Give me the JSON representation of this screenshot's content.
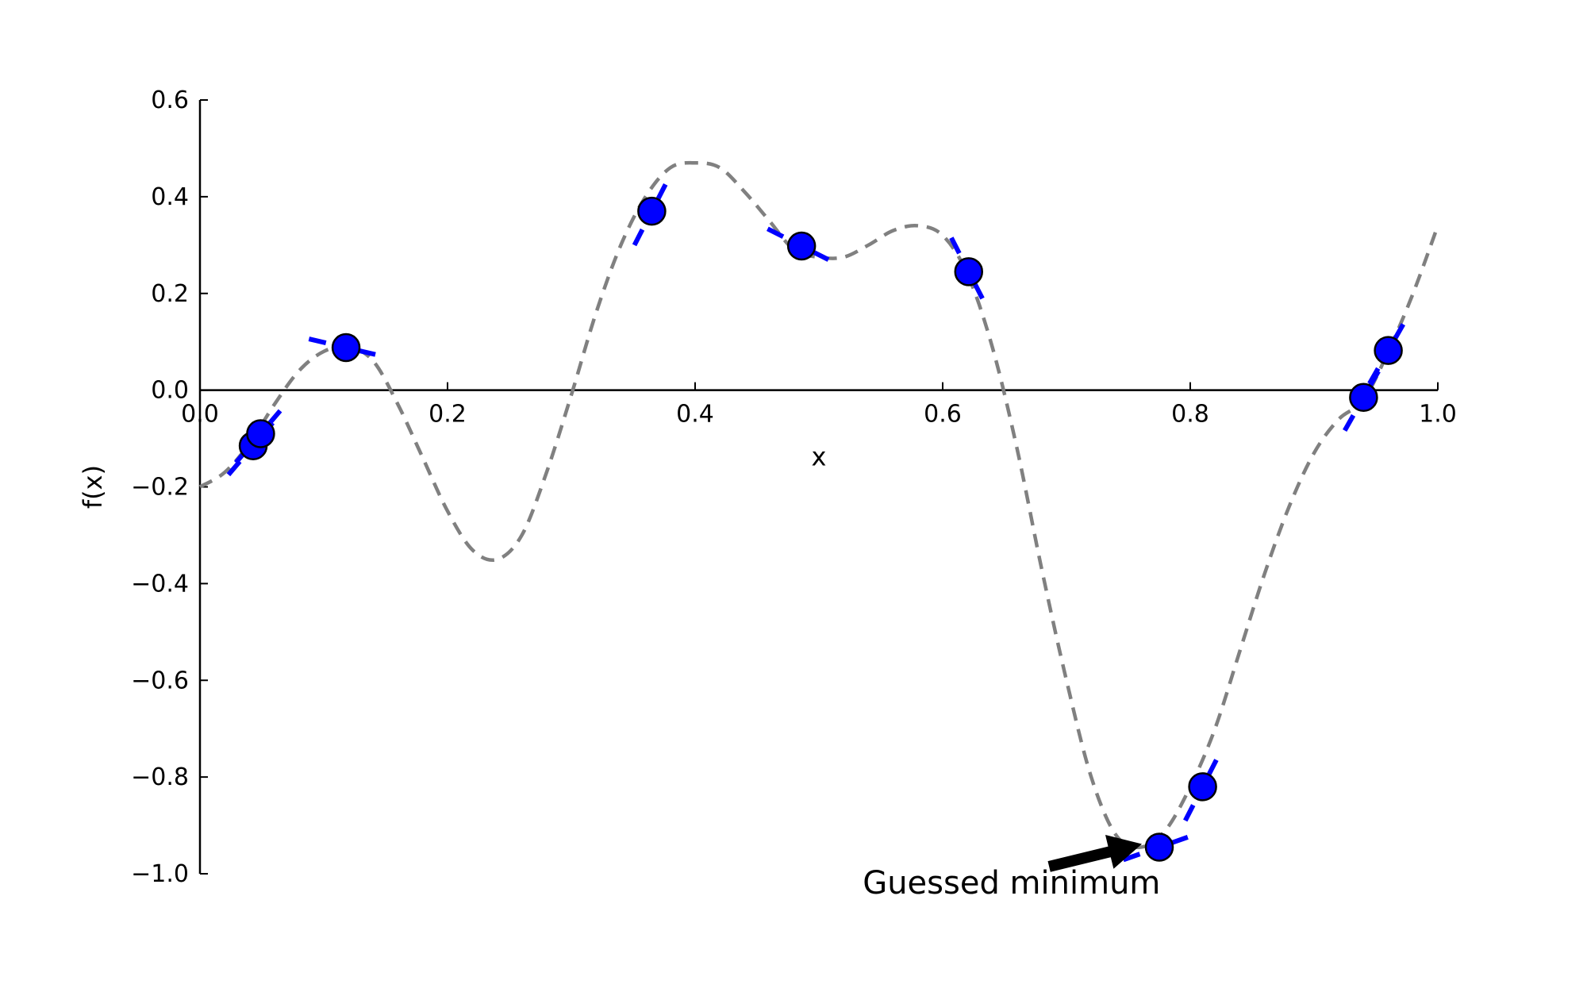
{
  "chart_data": {
    "type": "line",
    "title": "",
    "xlabel": "x",
    "ylabel": "f(x)",
    "xlim": [
      0.0,
      1.0
    ],
    "ylim": [
      -1.0,
      0.6
    ],
    "xticks": [
      0.0,
      0.2,
      0.4,
      0.6,
      0.8,
      1.0
    ],
    "xtick_labels": [
      "0.0",
      "0.2",
      "0.4",
      "0.6",
      "0.8",
      "1.0"
    ],
    "yticks": [
      -1.0,
      -0.8,
      -0.6,
      -0.4,
      -0.2,
      0.0,
      0.2,
      0.4,
      0.6
    ],
    "ytick_labels": [
      "−1.0",
      "−0.8",
      "−0.6",
      "−0.4",
      "−0.2",
      "0.0",
      "0.2",
      "0.4",
      "0.6"
    ],
    "grid": false,
    "series": [
      {
        "style": "dashed",
        "color": "#808080",
        "x": [
          0.0,
          0.02,
          0.04,
          0.06,
          0.08,
          0.1,
          0.12,
          0.14,
          0.16,
          0.18,
          0.2,
          0.22,
          0.24,
          0.26,
          0.28,
          0.3,
          0.32,
          0.34,
          0.36,
          0.38,
          0.4,
          0.42,
          0.44,
          0.46,
          0.48,
          0.5,
          0.52,
          0.54,
          0.56,
          0.58,
          0.6,
          0.62,
          0.64,
          0.66,
          0.68,
          0.7,
          0.72,
          0.74,
          0.76,
          0.78,
          0.8,
          0.82,
          0.84,
          0.86,
          0.88,
          0.9,
          0.92,
          0.94,
          0.96,
          0.98,
          1.0
        ],
        "y": [
          -0.2,
          -0.17,
          -0.11,
          -0.03,
          0.04,
          0.08,
          0.09,
          0.06,
          -0.03,
          -0.14,
          -0.25,
          -0.33,
          -0.35,
          -0.3,
          -0.17,
          -0.01,
          0.16,
          0.3,
          0.4,
          0.46,
          0.47,
          0.46,
          0.41,
          0.35,
          0.29,
          0.275,
          0.275,
          0.3,
          0.33,
          0.34,
          0.32,
          0.24,
          0.09,
          -0.12,
          -0.37,
          -0.6,
          -0.8,
          -0.92,
          -0.945,
          -0.91,
          -0.82,
          -0.7,
          -0.54,
          -0.38,
          -0.24,
          -0.13,
          -0.06,
          -0.02,
          0.08,
          0.2,
          0.34
        ]
      }
    ],
    "samples": {
      "color": "#0000ff",
      "points": [
        {
          "x": 0.043,
          "y": -0.115,
          "slope": 3.0
        },
        {
          "x": 0.049,
          "y": -0.09,
          "slope": 3.0
        },
        {
          "x": 0.118,
          "y": 0.088,
          "slope": -0.6
        },
        {
          "x": 0.365,
          "y": 0.37,
          "slope": 5.0
        },
        {
          "x": 0.486,
          "y": 0.298,
          "slope": -1.3
        },
        {
          "x": 0.621,
          "y": 0.245,
          "slope": -5.0
        },
        {
          "x": 0.775,
          "y": -0.945,
          "slope": 0.9
        },
        {
          "x": 0.81,
          "y": -0.82,
          "slope": 5.0
        },
        {
          "x": 0.94,
          "y": -0.015,
          "slope": 4.5
        },
        {
          "x": 0.96,
          "y": 0.082,
          "slope": 4.5
        }
      ]
    },
    "annotation": {
      "text": "Guessed minimum",
      "target": {
        "x": 0.775,
        "y": -0.945
      },
      "text_anchor_point": {
        "x": 0.68,
        "y": -1.0
      }
    }
  }
}
